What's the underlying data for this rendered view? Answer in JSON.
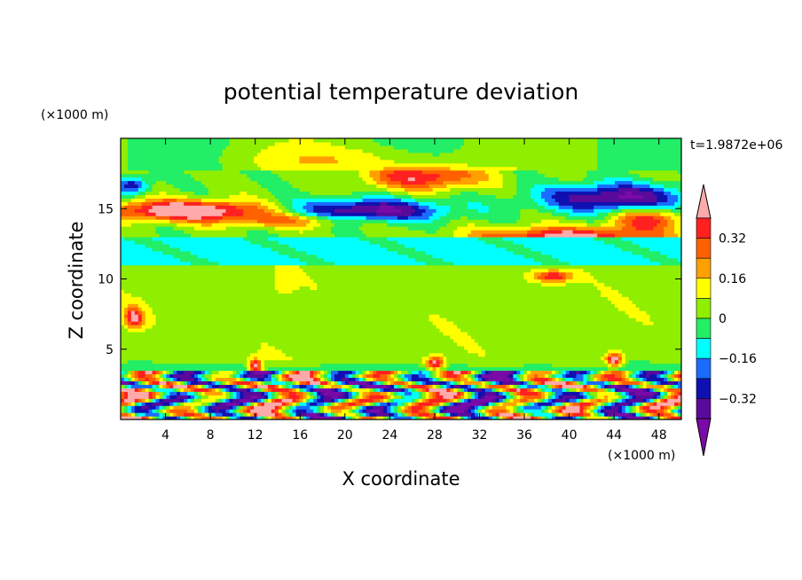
{
  "chart_data": {
    "type": "heatmap",
    "title": "potential temperature deviation",
    "xlabel": "X coordinate",
    "ylabel": "Z coordinate",
    "x_unit": "(×1000 m)",
    "y_unit": "(×1000 m)",
    "time_label": "t=1.9872e+06",
    "xlim": [
      0,
      50
    ],
    "ylim": [
      0,
      20
    ],
    "x_ticks": [
      "4",
      "8",
      "12",
      "16",
      "20",
      "24",
      "28",
      "32",
      "36",
      "40",
      "44",
      "48"
    ],
    "y_ticks": [
      "5",
      "10",
      "15"
    ],
    "colorbar": {
      "labels": [
        "0.32",
        "0.16",
        "0",
        "−0.16",
        "−0.32"
      ],
      "label_values": [
        0.32,
        0.16,
        0,
        -0.16,
        -0.32
      ],
      "levels": [
        -0.4,
        -0.32,
        -0.24,
        -0.16,
        -0.08,
        0,
        0.08,
        0.16,
        0.24,
        0.32,
        0.4
      ],
      "colors": [
        "#ffaaaa",
        "#ff2020",
        "#ff6000",
        "#ffa000",
        "#ffff00",
        "#90ee00",
        "#22ee66",
        "#00ffff",
        "#1a6bff",
        "#1010b0",
        "#5a0a9a",
        "#7a0aa8"
      ]
    },
    "bands": [
      {
        "z": [
          0,
          3.5
        ],
        "pattern": "turbulent mixed warm/cold cells"
      },
      {
        "z": [
          3.5,
          11
        ],
        "level": 0.04,
        "pattern": "near-neutral with warm patches"
      },
      {
        "z": [
          11,
          13
        ],
        "level": -0.12,
        "pattern": "cool layer"
      },
      {
        "z": [
          13,
          17.5
        ],
        "pattern": "strong warm and cold lenses"
      },
      {
        "z": [
          17.5,
          20
        ],
        "level": 0.0,
        "pattern": "near-neutral"
      }
    ]
  }
}
